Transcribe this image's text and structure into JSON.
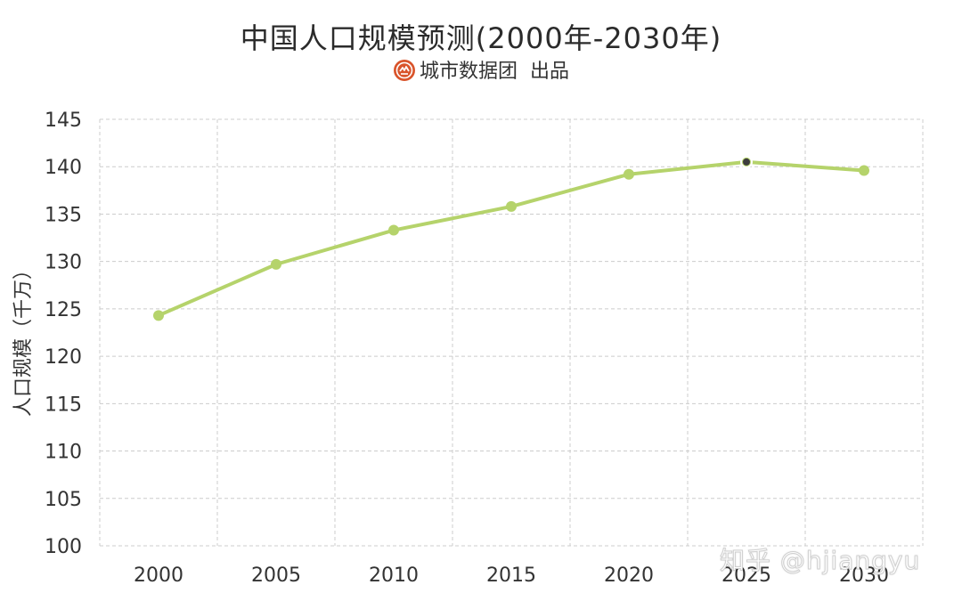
{
  "title": "中国人口规模预测(2000年-2030年)",
  "source": {
    "org": "城市数据团",
    "suffix": "出品",
    "logo_icon": "city-data-group-logo",
    "logo_color": "#d9542b"
  },
  "watermark": "知乎 @hjiangyu",
  "colors": {
    "line": "#b5d36b",
    "grid": "#cccccc",
    "highlight_point": "#3d3d3d"
  },
  "chart_data": {
    "type": "line",
    "title": "中国人口规模预测(2000年-2030年)",
    "xlabel": "",
    "ylabel": "人口规模（千万）",
    "categories": [
      "2000",
      "2005",
      "2010",
      "2015",
      "2020",
      "2025",
      "2030"
    ],
    "series": [
      {
        "values": [
          124.3,
          129.7,
          133.3,
          135.8,
          139.2,
          140.5,
          139.6
        ]
      }
    ],
    "ylim": [
      100,
      145
    ],
    "yticks": [
      "100",
      "105",
      "110",
      "115",
      "120",
      "125",
      "130",
      "135",
      "140",
      "145"
    ],
    "grid": "dashed, both axes",
    "highlighted_category": "2025",
    "legend": "none"
  }
}
